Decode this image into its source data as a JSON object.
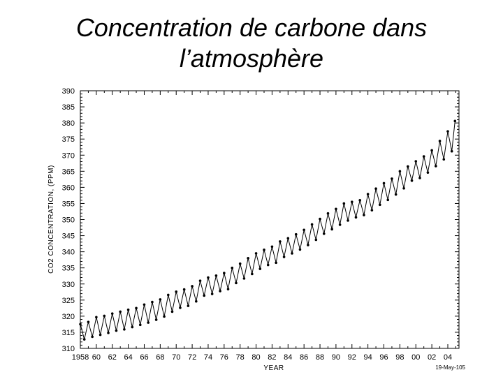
{
  "slide": {
    "title_line1": "Concentration de carbone dans",
    "title_line2": "l’atmosphère"
  },
  "chart_data": {
    "type": "line",
    "title": "",
    "xlabel": "YEAR",
    "ylabel": "CO2 CONCENTRATION, (PPM)",
    "xlim": [
      1958,
      2005.4
    ],
    "ylim": [
      310,
      390
    ],
    "x_ticks": [
      "1958",
      "60",
      "62",
      "64",
      "66",
      "68",
      "70",
      "72",
      "74",
      "76",
      "78",
      "80",
      "82",
      "84",
      "86",
      "88",
      "90",
      "92",
      "94",
      "96",
      "98",
      "00",
      "02",
      "04"
    ],
    "y_ticks": [
      310,
      315,
      320,
      325,
      330,
      335,
      340,
      345,
      350,
      355,
      360,
      365,
      370,
      375,
      380,
      385,
      390
    ],
    "annotation": "19-May-105",
    "grid": false,
    "marker": "filled-circle",
    "color": "#000000",
    "series": [
      {
        "values_note_unit": "ppm",
        "x": [
          1958.0,
          1958.5,
          1959.0,
          1959.5,
          1960.0,
          1960.5,
          1961.0,
          1961.5,
          1962.0,
          1962.5,
          1963.0,
          1963.5,
          1964.0,
          1964.5,
          1965.0,
          1965.5,
          1966.0,
          1966.5,
          1967.0,
          1967.5,
          1968.0,
          1968.5,
          1969.0,
          1969.5,
          1970.0,
          1970.5,
          1971.0,
          1971.5,
          1972.0,
          1972.5,
          1973.0,
          1973.5,
          1974.0,
          1974.5,
          1975.0,
          1975.5,
          1976.0,
          1976.5,
          1977.0,
          1977.5,
          1978.0,
          1978.5,
          1979.0,
          1979.5,
          1980.0,
          1980.5,
          1981.0,
          1981.5,
          1982.0,
          1982.5,
          1983.0,
          1983.5,
          1984.0,
          1984.5,
          1985.0,
          1985.5,
          1986.0,
          1986.5,
          1987.0,
          1987.5,
          1988.0,
          1988.5,
          1989.0,
          1989.5,
          1990.0,
          1990.5,
          1991.0,
          1991.5,
          1992.0,
          1992.5,
          1993.0,
          1993.5,
          1994.0,
          1994.5,
          1995.0,
          1995.5,
          1996.0,
          1996.5,
          1997.0,
          1997.5,
          1998.0,
          1998.5,
          1999.0,
          1999.5,
          2000.0,
          2000.5,
          2001.0,
          2001.5,
          2002.0,
          2002.5,
          2003.0,
          2003.5,
          2004.0,
          2004.5,
          2004.9
        ],
        "y": [
          317.5,
          312.8,
          318.2,
          313.6,
          319.7,
          314.2,
          320.1,
          314.8,
          320.8,
          315.5,
          321.4,
          315.9,
          322.0,
          316.6,
          322.5,
          317.3,
          323.6,
          318.0,
          324.4,
          318.9,
          325.2,
          319.9,
          326.6,
          321.4,
          327.6,
          322.6,
          328.3,
          323.2,
          329.3,
          324.6,
          331.0,
          326.4,
          332.0,
          326.9,
          332.6,
          327.8,
          333.4,
          328.4,
          335.0,
          330.3,
          336.3,
          331.7,
          338.0,
          333.1,
          339.5,
          334.7,
          340.6,
          335.9,
          341.6,
          336.6,
          343.2,
          338.4,
          344.2,
          339.5,
          345.4,
          340.7,
          346.8,
          342.1,
          348.5,
          343.7,
          350.2,
          345.6,
          351.9,
          347.0,
          353.3,
          348.4,
          355.0,
          349.7,
          355.5,
          350.7,
          356.0,
          351.4,
          357.9,
          352.9,
          359.6,
          354.6,
          361.3,
          356.1,
          362.7,
          357.8,
          365.0,
          359.7,
          366.5,
          362.1,
          368.1,
          362.9,
          369.6,
          364.6,
          371.5,
          366.6,
          374.4,
          368.7,
          377.4,
          371.2,
          380.6
        ]
      }
    ]
  }
}
